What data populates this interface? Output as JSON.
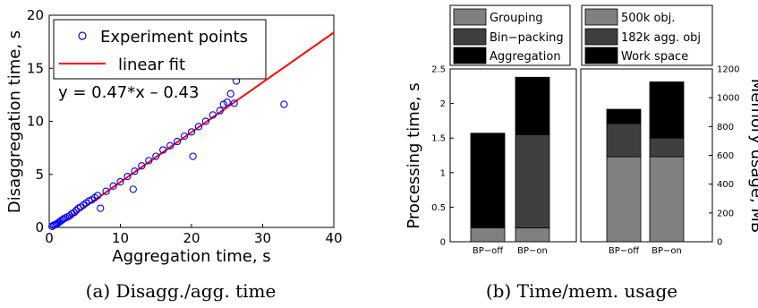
{
  "panel_a": {
    "caption": "(a) Disagg./agg. time",
    "legend_points": "Experiment points",
    "legend_fit": "linear fit",
    "equation": "y = 0.47*x – 0.43",
    "colors": {
      "points": "#0000ff",
      "fit": "#ff0000"
    }
  },
  "panel_b": {
    "caption": "(b) Time/mem. usage",
    "legend_left": [
      "Grouping",
      "Bin−packing",
      "Aggregation"
    ],
    "legend_right": [
      "500k obj.",
      "182k agg. obj",
      "Work space"
    ],
    "colors": {
      "light": "#808080",
      "mid": "#3f3f3f",
      "dark": "#000000"
    }
  },
  "chart_data": [
    {
      "type": "scatter",
      "title": "",
      "xlabel": "Aggregation time, s",
      "ylabel": "Disaggregation time, s",
      "xlim": [
        0,
        40
      ],
      "ylim": [
        0,
        20
      ],
      "xticks": [
        0,
        10,
        20,
        30,
        40
      ],
      "yticks": [
        0,
        5,
        10,
        15,
        20
      ],
      "legend_position": "top-left",
      "fit": {
        "name": "linear fit",
        "slope": 0.47,
        "intercept": -0.43,
        "x_range": [
          0.9,
          40
        ]
      },
      "series": [
        {
          "name": "Experiment points",
          "x": [
            0.4,
            0.6,
            0.8,
            1.0,
            1.2,
            1.4,
            1.6,
            1.8,
            2.0,
            2.3,
            2.6,
            2.9,
            3.2,
            3.5,
            3.8,
            4.1,
            4.4,
            4.8,
            5.2,
            5.6,
            6.0,
            6.4,
            6.8,
            7.2,
            8.0,
            9.0,
            10.0,
            11.0,
            11.8,
            12.0,
            13.0,
            14.0,
            15.0,
            16.0,
            17.0,
            18.0,
            19.0,
            20.0,
            20.2,
            21.0,
            22.0,
            23.0,
            24.0,
            24.5,
            25.0,
            25.5,
            26.0,
            26.3,
            33.0
          ],
          "y": [
            0.1,
            0.2,
            0.25,
            0.3,
            0.4,
            0.5,
            0.6,
            0.7,
            0.8,
            0.9,
            1.0,
            1.1,
            1.3,
            1.4,
            1.6,
            1.8,
            1.9,
            2.1,
            2.3,
            2.5,
            2.6,
            2.8,
            3.0,
            1.8,
            3.4,
            3.9,
            4.3,
            4.8,
            3.6,
            5.3,
            5.8,
            6.3,
            6.7,
            7.3,
            7.7,
            8.1,
            8.6,
            9.0,
            6.7,
            9.5,
            10.0,
            10.6,
            11.0,
            11.6,
            11.8,
            12.6,
            11.7,
            13.8,
            11.6
          ]
        }
      ]
    },
    {
      "type": "bar",
      "stacked": true,
      "title": "",
      "xlabel": "",
      "ylabel": "Processing time, s",
      "categories": [
        "BP−off",
        "BP−on"
      ],
      "ylim": [
        0,
        2.5
      ],
      "yticks": [
        0,
        0.5,
        1,
        1.5,
        2,
        2.5
      ],
      "series": [
        {
          "name": "Grouping",
          "values": [
            0.2,
            0.2
          ]
        },
        {
          "name": "Bin−packing",
          "values": [
            0.0,
            1.35
          ]
        },
        {
          "name": "Aggregation",
          "values": [
            1.37,
            0.83
          ]
        }
      ]
    },
    {
      "type": "bar",
      "stacked": true,
      "title": "",
      "xlabel": "",
      "ylabel": "Memory usage, MB",
      "categories": [
        "BP−off",
        "BP−on"
      ],
      "ylim": [
        0,
        1200
      ],
      "yticks": [
        0,
        200,
        400,
        600,
        800,
        1000,
        1200
      ],
      "series": [
        {
          "name": "500k obj.",
          "values": [
            590,
            590
          ]
        },
        {
          "name": "182k agg. obj",
          "values": [
            230,
            130
          ]
        },
        {
          "name": "Work space",
          "values": [
            100,
            390
          ]
        }
      ]
    }
  ]
}
